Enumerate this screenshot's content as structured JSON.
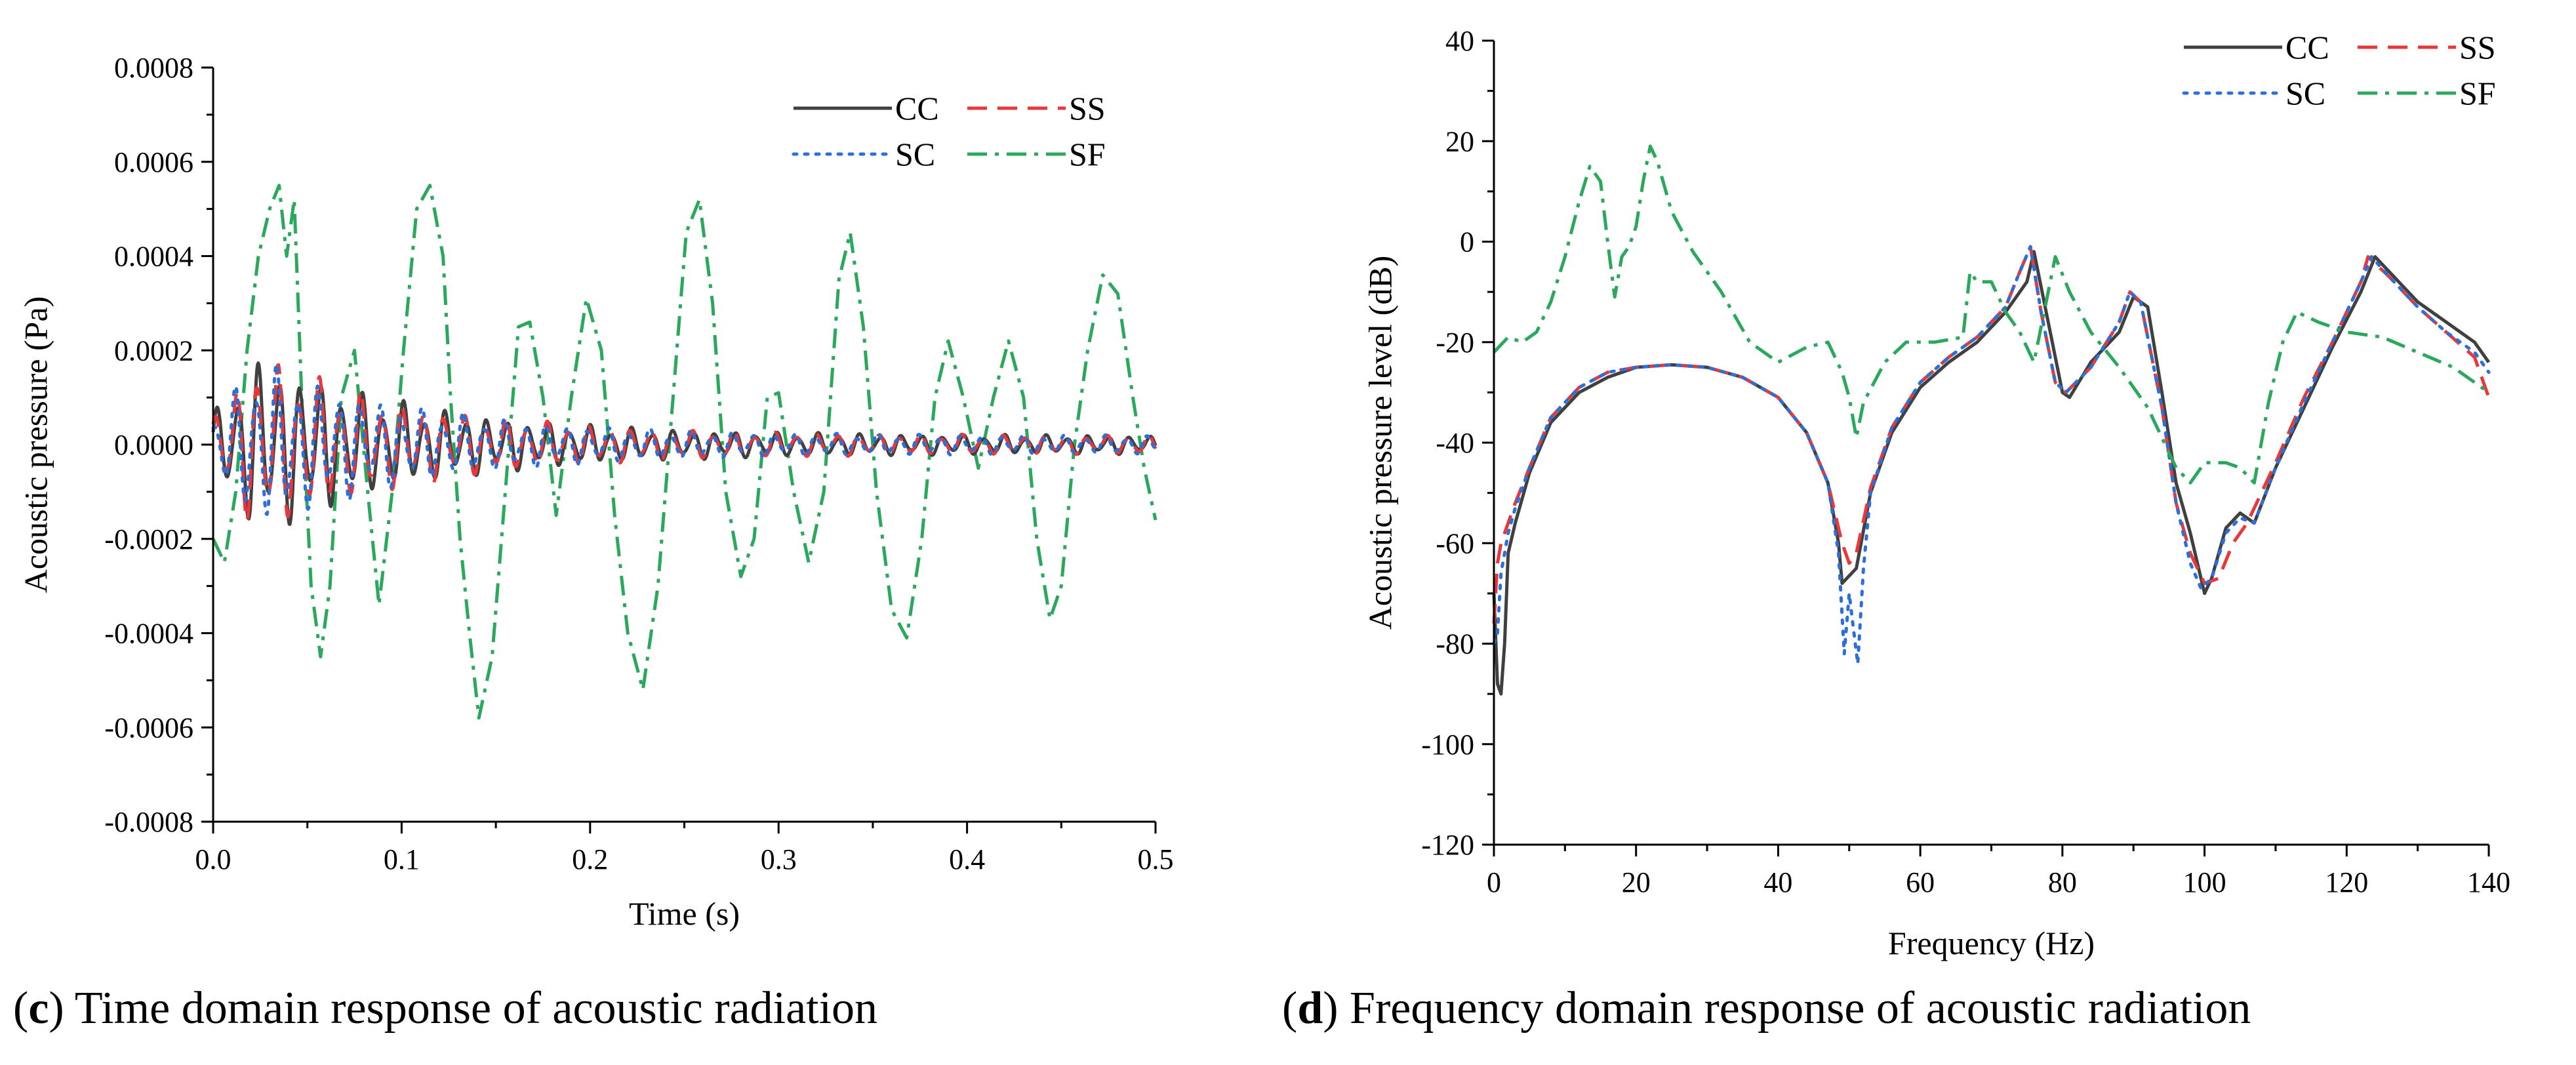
{
  "colors": {
    "CC": "#404040",
    "SS": "#e8383a",
    "SC": "#2a6fdb",
    "SF": "#2aa85c"
  },
  "dash": {
    "CC": "solid",
    "SS": "dash",
    "SC": "dot",
    "SF": "dashdot"
  },
  "chart_data": [
    {
      "id": "c",
      "type": "line",
      "caption_letter": "c",
      "caption_text": ") Time domain response of acoustic radiation",
      "title": "",
      "xlabel": "Time (s)",
      "ylabel": "Acoustic pressure (Pa)",
      "xlim": [
        0,
        0.5
      ],
      "ylim": [
        -0.0008,
        0.0008
      ],
      "xticks": [
        0.0,
        0.1,
        0.2,
        0.3,
        0.4,
        0.5
      ],
      "xtick_labels": [
        "0.0",
        "0.1",
        "0.2",
        "0.3",
        "0.4",
        "0.5"
      ],
      "yticks": [
        -0.0008,
        -0.0006,
        -0.0004,
        -0.0002,
        0.0,
        0.0002,
        0.0004,
        0.0006,
        0.0008
      ],
      "ytick_labels": [
        "-0.0008",
        "-0.0006",
        "-0.0004",
        "-0.0002",
        "0.0000",
        "0.0002",
        "0.0004",
        "0.0006",
        "0.0008"
      ],
      "legend": [
        "CC",
        "SS",
        "SC",
        "SF"
      ],
      "legend_position": "top-right",
      "series": [
        {
          "name": "SF",
          "x": [
            0.0,
            0.006,
            0.012,
            0.018,
            0.024,
            0.03,
            0.035,
            0.039,
            0.043,
            0.047,
            0.052,
            0.057,
            0.062,
            0.068,
            0.075,
            0.082,
            0.088,
            0.095,
            0.101,
            0.108,
            0.115,
            0.122,
            0.126,
            0.131,
            0.136,
            0.141,
            0.148,
            0.155,
            0.162,
            0.168,
            0.175,
            0.182,
            0.19,
            0.198,
            0.206,
            0.213,
            0.22,
            0.228,
            0.236,
            0.244,
            0.251,
            0.258,
            0.265,
            0.272,
            0.28,
            0.287,
            0.294,
            0.3,
            0.308,
            0.316,
            0.324,
            0.332,
            0.338,
            0.345,
            0.352,
            0.36,
            0.368,
            0.376,
            0.383,
            0.39,
            0.398,
            0.406,
            0.414,
            0.422,
            0.43,
            0.437,
            0.444,
            0.45,
            0.457,
            0.464,
            0.472,
            0.48,
            0.488,
            0.494,
            0.5
          ],
          "values": [
            -0.0002,
            -0.00025,
            -0.0001,
            0.0002,
            0.0004,
            0.0005,
            0.00055,
            0.0004,
            0.00052,
            0.0001,
            -0.0003,
            -0.00045,
            -0.0003,
            0.0001,
            0.0002,
            -0.0001,
            -0.00034,
            -0.0001,
            0.0002,
            0.0005,
            0.00055,
            0.0004,
            0.0001,
            -0.0002,
            -0.0004,
            -0.00058,
            -0.00045,
            -0.0001,
            0.00025,
            0.00026,
            0.0001,
            -0.00015,
            0.0001,
            0.00031,
            0.0002,
            -0.00015,
            -0.0004,
            -0.00052,
            -0.0003,
            0.0001,
            0.00045,
            0.00052,
            0.0003,
            -0.0001,
            -0.00028,
            -0.0002,
            0.0001,
            0.00011,
            -0.0001,
            -0.00025,
            -0.0001,
            0.00035,
            0.00045,
            0.00025,
            -0.0001,
            -0.00035,
            -0.00041,
            -0.0002,
            0.0001,
            0.00022,
            0.0001,
            -5e-05,
            0.0001,
            0.00022,
            0.0001,
            -0.0002,
            -0.00037,
            -0.0003,
            0.0,
            0.0002,
            0.00036,
            0.00032,
            0.0001,
            -5e-05,
            -0.00016
          ]
        },
        {
          "name": "CC",
          "model": "decaying-osc",
          "amp": [
            0.0002,
            2e-05
          ],
          "period": 0.011,
          "dur": [
            0.0,
            0.5
          ]
        },
        {
          "name": "SS",
          "model": "decaying-osc",
          "amp": [
            0.0002,
            2e-05
          ],
          "period": 0.011,
          "dur": [
            0.0,
            0.5
          ]
        },
        {
          "name": "SC",
          "model": "decaying-osc",
          "amp": [
            0.00019,
            2e-05
          ],
          "period": 0.011,
          "dur": [
            0.0,
            0.5
          ]
        }
      ]
    },
    {
      "id": "d",
      "type": "line",
      "caption_letter": "d",
      "caption_text": ") Frequency domain response of acoustic radiation",
      "title": "",
      "xlabel": "Frequency (Hz)",
      "ylabel": "Acoustic pressure level (dB)",
      "xlim": [
        0,
        140
      ],
      "ylim": [
        -120,
        40
      ],
      "xticks": [
        0,
        20,
        40,
        60,
        80,
        100,
        120,
        140
      ],
      "xtick_labels": [
        "0",
        "20",
        "40",
        "60",
        "80",
        "100",
        "120",
        "140"
      ],
      "yticks": [
        -120,
        -100,
        -80,
        -60,
        -40,
        -20,
        0,
        20,
        40
      ],
      "ytick_labels": [
        "-120",
        "-100",
        "-80",
        "-60",
        "-40",
        "-20",
        "0",
        "20",
        "40"
      ],
      "legend": [
        "CC",
        "SS",
        "SC",
        "SF"
      ],
      "legend_position": "top-right",
      "series": [
        {
          "name": "CC",
          "x": [
            0,
            0.5,
            1,
            1.5,
            2,
            3,
            5,
            8,
            12,
            16,
            20,
            25,
            30,
            35,
            40,
            44,
            47,
            48.5,
            49,
            51,
            53,
            56,
            60,
            64,
            68,
            72,
            75,
            76,
            78,
            80,
            81,
            84,
            88,
            90,
            92,
            94,
            96,
            98,
            100,
            101,
            103,
            105,
            107,
            110,
            114,
            118,
            122,
            124,
            126,
            130,
            134,
            138,
            140
          ],
          "values": [
            -70,
            -88,
            -90,
            -80,
            -62,
            -56,
            -46,
            -36,
            -30,
            -27,
            -25,
            -24.5,
            -25,
            -27,
            -31,
            -38,
            -48,
            -60,
            -68,
            -65,
            -50,
            -38,
            -29,
            -24,
            -20,
            -14,
            -8,
            -2,
            -16,
            -30,
            -31,
            -24,
            -18,
            -11,
            -13,
            -30,
            -48,
            -58,
            -70,
            -67,
            -57,
            -54,
            -56,
            -45,
            -33,
            -21,
            -10,
            -3,
            -6,
            -12,
            -16,
            -20,
            -24
          ]
        },
        {
          "name": "SS",
          "x": [
            0,
            0.5,
            1,
            2,
            3,
            5,
            8,
            12,
            16,
            20,
            25,
            30,
            35,
            40,
            44,
            47,
            49,
            50,
            51,
            53,
            56,
            60,
            64,
            68,
            72,
            74,
            75.5,
            77,
            79,
            80.5,
            84,
            88,
            89.5,
            91,
            94,
            96,
            98,
            100,
            102,
            104,
            106,
            110,
            114,
            118,
            122,
            123,
            126,
            130,
            134,
            138,
            140
          ],
          "values": [
            -76,
            -64,
            -60,
            -56,
            -52,
            -45,
            -35,
            -29,
            -26,
            -25,
            -24.5,
            -25,
            -27,
            -31,
            -38,
            -48,
            -60,
            -64,
            -62,
            -49,
            -37,
            -28,
            -23,
            -19,
            -13,
            -6,
            -1,
            -14,
            -28,
            -30,
            -25,
            -16,
            -10,
            -12,
            -33,
            -52,
            -62,
            -68,
            -67,
            -60,
            -56,
            -44,
            -31,
            -20,
            -8,
            -3,
            -7,
            -13,
            -18,
            -23,
            -31
          ]
        },
        {
          "name": "SC",
          "x": [
            0,
            0.5,
            1,
            2,
            3,
            5,
            8,
            12,
            16,
            20,
            25,
            30,
            35,
            40,
            44,
            47,
            48.5,
            49.3,
            50,
            50.5,
            51.2,
            52,
            53,
            56,
            60,
            64,
            68,
            72,
            74,
            75.5,
            77,
            79,
            80.5,
            84,
            88,
            89.5,
            91,
            94,
            96,
            98,
            99.5,
            101,
            103,
            105,
            107,
            110,
            114,
            118,
            122,
            123.5,
            126,
            130,
            134,
            138,
            140
          ],
          "values": [
            -80,
            -78,
            -66,
            -58,
            -53,
            -45,
            -35,
            -29,
            -26,
            -25,
            -24.5,
            -25,
            -27,
            -31,
            -38,
            -48,
            -62,
            -82,
            -70,
            -76,
            -84,
            -65,
            -50,
            -37,
            -28,
            -23,
            -19,
            -13,
            -6,
            -1,
            -14,
            -28,
            -30,
            -25,
            -16,
            -10,
            -12,
            -33,
            -52,
            -64,
            -69,
            -67,
            -58,
            -55,
            -56,
            -45,
            -32,
            -20,
            -8,
            -3,
            -7,
            -13,
            -18,
            -22,
            -26
          ]
        },
        {
          "name": "SF",
          "x": [
            0,
            2,
            4,
            6,
            8,
            10,
            12,
            13.5,
            15,
            16,
            17,
            18,
            19,
            20,
            21,
            22,
            23,
            25,
            28,
            32,
            36,
            40,
            44,
            47,
            49,
            50,
            51,
            52,
            55,
            58,
            62,
            66,
            67,
            68,
            70,
            72,
            74,
            76,
            77,
            78,
            79,
            81,
            84,
            88,
            92,
            96,
            98,
            100,
            103,
            105,
            107,
            109,
            111,
            113,
            116,
            120,
            125,
            130,
            135,
            140
          ],
          "values": [
            -22,
            -19,
            -20,
            -18,
            -12,
            -3,
            8,
            15,
            12,
            0,
            -11,
            -3,
            -1,
            3,
            12,
            19,
            16,
            6,
            -2,
            -10,
            -20,
            -24,
            -21,
            -20,
            -26,
            -31,
            -39,
            -32,
            -24,
            -20,
            -20,
            -19,
            -6,
            -8,
            -8,
            -14,
            -18,
            -24,
            -17,
            -10,
            -3,
            -10,
            -18,
            -25,
            -33,
            -45,
            -48,
            -44,
            -44,
            -45,
            -48,
            -32,
            -20,
            -14,
            -16,
            -18,
            -19,
            -22,
            -25,
            -30
          ]
        }
      ]
    }
  ]
}
